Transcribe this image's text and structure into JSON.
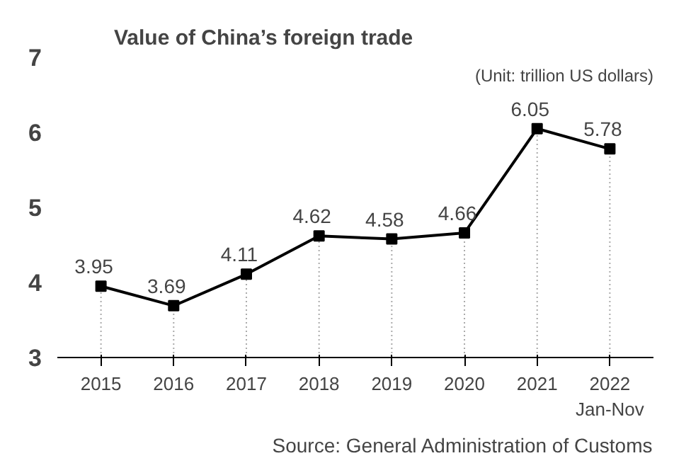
{
  "chart_data": {
    "type": "line",
    "title": "Value of China’s foreign trade",
    "categories": [
      "2015",
      "2016",
      "2017",
      "2018",
      "2019",
      "2020",
      "2021",
      "2022\nJan-Nov"
    ],
    "series": [
      {
        "color": "#000000",
        "values": [
          3.95,
          3.69,
          4.11,
          4.62,
          4.58,
          4.66,
          6.05,
          5.78
        ]
      }
    ],
    "ylim": [
      3,
      7
    ],
    "yticks": [
      3,
      4,
      5,
      6,
      7
    ],
    "grid": "x",
    "marker": "square",
    "line_style": "solid",
    "data_labels": true,
    "annotations": [
      "(Unit: trillion US dollars)",
      "Source: General Administration of Customs"
    ]
  }
}
